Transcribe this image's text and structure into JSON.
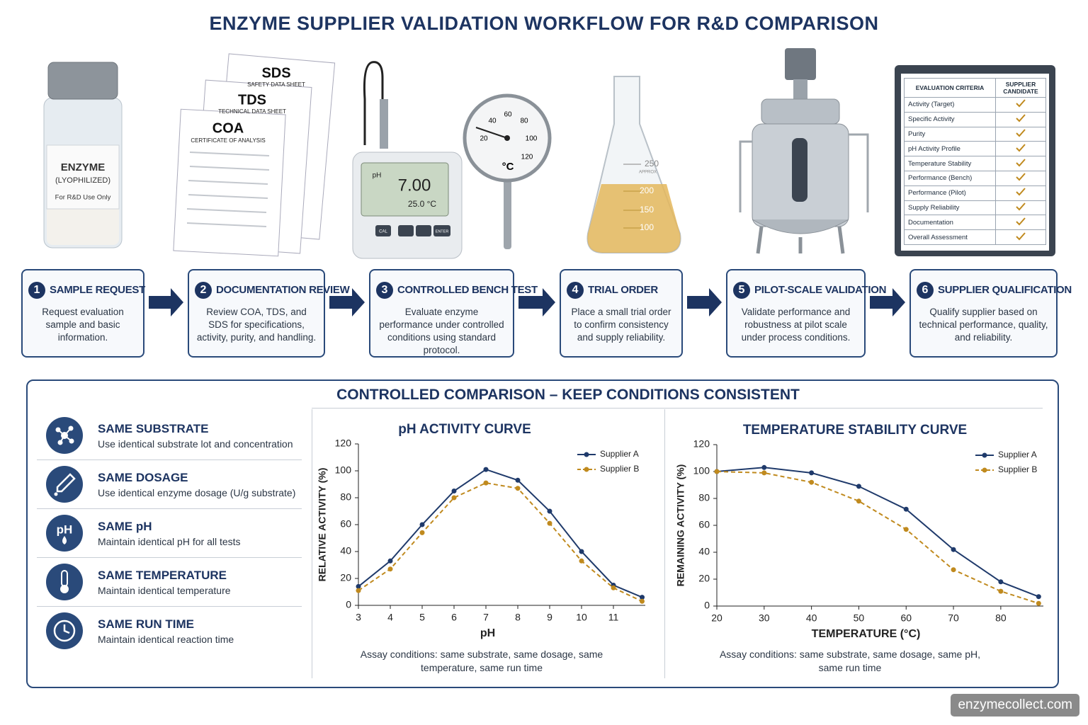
{
  "title": "ENZYME SUPPLIER VALIDATION WORKFLOW FOR R&D COMPARISON",
  "illustrations": {
    "vial": {
      "name": "ENZYME",
      "form": "(LYOPHILIZED)",
      "note": "For R&D Use Only"
    },
    "documents": [
      {
        "code": "SDS",
        "name": "SAFETY DATA SHEET"
      },
      {
        "code": "TDS",
        "name": "TECHNICAL DATA SHEET"
      },
      {
        "code": "COA",
        "name": "CERTIFICATE OF ANALYSIS"
      }
    ],
    "meter": {
      "unit": "pH",
      "reading": "7.00",
      "temperature": "25.0 °C",
      "buttons": [
        "CAL",
        "ENTER"
      ]
    },
    "thermometer": {
      "scale": [
        "20",
        "40",
        "60",
        "80",
        "100",
        "120"
      ],
      "unit": "°C"
    },
    "flask": {
      "marks": [
        "250",
        "200",
        "150",
        "100"
      ],
      "approx": "APPROX"
    }
  },
  "criteria": {
    "header": [
      "EVALUATION CRITERIA",
      "SUPPLIER CANDIDATE"
    ],
    "rows": [
      "Activity (Target)",
      "Specific Activity",
      "Purity",
      "pH Activity Profile",
      "Temperature Stability",
      "Performance (Bench)",
      "Performance (Pilot)",
      "Supply Reliability",
      "Documentation",
      "Overall Assessment"
    ]
  },
  "steps": [
    {
      "number": "1",
      "title": "SAMPLE REQUEST",
      "text": "Request evaluation sample and basic information."
    },
    {
      "number": "2",
      "title": "DOCUMENTATION REVIEW",
      "text": "Review COA, TDS, and SDS for specifications, activity, purity, and handling."
    },
    {
      "number": "3",
      "title": "CONTROLLED BENCH TEST",
      "text": "Evaluate enzyme performance under controlled conditions using standard protocol."
    },
    {
      "number": "4",
      "title": "TRIAL ORDER",
      "text": "Place a small trial order to confirm consistency and supply reliability."
    },
    {
      "number": "5",
      "title": "PILOT-SCALE VALIDATION",
      "text": "Validate performance and robustness at pilot scale under process conditions."
    },
    {
      "number": "6",
      "title": "SUPPLIER QUALIFICATION",
      "text": "Qualify supplier based on technical performance, quality, and reliability."
    }
  ],
  "comparison": {
    "title": "CONTROLLED COMPARISON – KEEP CONDITIONS CONSISTENT",
    "conditions": [
      {
        "title": "SAME SUBSTRATE",
        "text": "Use identical substrate lot and concentration"
      },
      {
        "title": "SAME DOSAGE",
        "text": "Use identical enzyme dosage (U/g substrate)"
      },
      {
        "title": "SAME pH",
        "text": "Maintain identical pH for all tests",
        "icon_text": "pH"
      },
      {
        "title": "SAME TEMPERATURE",
        "text": "Maintain identical temperature"
      },
      {
        "title": "SAME RUN TIME",
        "text": "Maintain identical reaction time"
      }
    ]
  },
  "chart_data": [
    {
      "type": "line",
      "title": "pH ACTIVITY CURVE",
      "x_label": "pH",
      "y_label": "RELATIVE ACTIVITY (%)",
      "note": "Assay conditions: same substrate, same dosage, same temperature, same run time",
      "x": [
        3,
        4,
        5,
        6,
        7,
        8,
        9,
        10,
        11,
        11.9
      ],
      "series": [
        {
          "name": "Supplier A",
          "color": "#1f3a6b",
          "dashed": false,
          "values": [
            14,
            33,
            60,
            85,
            101,
            93,
            70,
            40,
            15,
            6
          ]
        },
        {
          "name": "Supplier B",
          "color": "#c08a1e",
          "dashed": true,
          "values": [
            11,
            27,
            54,
            80,
            91,
            87,
            61,
            33,
            13,
            3
          ]
        }
      ],
      "xlim": [
        3,
        12
      ],
      "xticks": [
        3,
        4,
        5,
        6,
        7,
        8,
        9,
        10,
        11
      ],
      "ylim": [
        0,
        120
      ],
      "yticks": [
        0,
        20,
        40,
        60,
        80,
        100,
        120
      ],
      "legend": "upper right",
      "grid": false
    },
    {
      "type": "line",
      "title": "TEMPERATURE STABILITY CURVE",
      "x_label": "TEMPERATURE (°C)",
      "y_label": "REMAINING ACTIVITY (%)",
      "note": "Assay conditions: same substrate, same dosage, same pH, same run time",
      "x": [
        20,
        30,
        40,
        50,
        60,
        70,
        80,
        88
      ],
      "series": [
        {
          "name": "Supplier A",
          "color": "#1f3a6b",
          "dashed": false,
          "values": [
            100,
            103,
            99,
            89,
            72,
            42,
            18,
            7
          ]
        },
        {
          "name": "Supplier B",
          "color": "#c08a1e",
          "dashed": true,
          "values": [
            100,
            99,
            92,
            78,
            57,
            27,
            11,
            2
          ]
        }
      ],
      "xlim": [
        20,
        89
      ],
      "xticks": [
        20,
        30,
        40,
        50,
        60,
        70,
        80
      ],
      "ylim": [
        0,
        120
      ],
      "yticks": [
        0,
        20,
        40,
        60,
        80,
        100,
        120
      ],
      "legend": "upper right",
      "grid": false
    }
  ],
  "watermark": "enzymecollect.com"
}
